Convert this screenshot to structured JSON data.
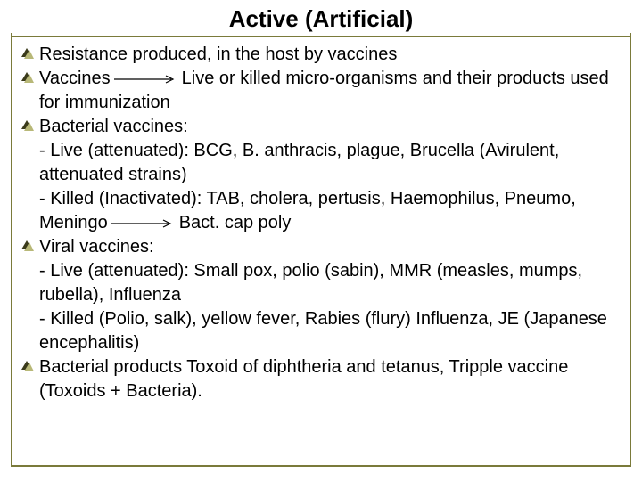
{
  "title": "Active (Artificial)",
  "colors": {
    "frame": "#7a7a3a",
    "bullet_dark": "#3a3a1a",
    "bullet_light": "#b8b878",
    "text": "#000000",
    "bg": "#ffffff"
  },
  "font": {
    "title_size": 26,
    "body_size": 20
  },
  "items": [
    {
      "bullet": true,
      "text": "Resistance produced, in the host by vaccines"
    },
    {
      "bullet": true,
      "pre": "Vaccines",
      "arrow": true,
      "post": "Live or killed micro-organisms and their products used for immunization"
    },
    {
      "bullet": true,
      "text": "Bacterial vaccines:"
    },
    {
      "bullet": false,
      "text": " - Live (attenuated): BCG, B. anthracis, plague, Brucella (Avirulent, attenuated strains)"
    },
    {
      "bullet": false,
      "pre": " - Killed (Inactivated): TAB, cholera, pertusis, Haemophilus, Pneumo, Meningo",
      "arrow": true,
      "post": "Bact. cap poly"
    },
    {
      "bullet": true,
      "text": "Viral vaccines:"
    },
    {
      "bullet": false,
      "text": " - Live (attenuated): Small pox, polio (sabin), MMR (measles, mumps, rubella), Influenza"
    },
    {
      "bullet": false,
      "text": " - Killed (Polio, salk), yellow fever, Rabies (flury) Influenza, JE (Japanese encephalitis)"
    },
    {
      "bullet": true,
      "text": "Bacterial products  Toxoid of diphtheria and tetanus, Tripple vaccine (Toxoids + Bacteria)."
    }
  ]
}
